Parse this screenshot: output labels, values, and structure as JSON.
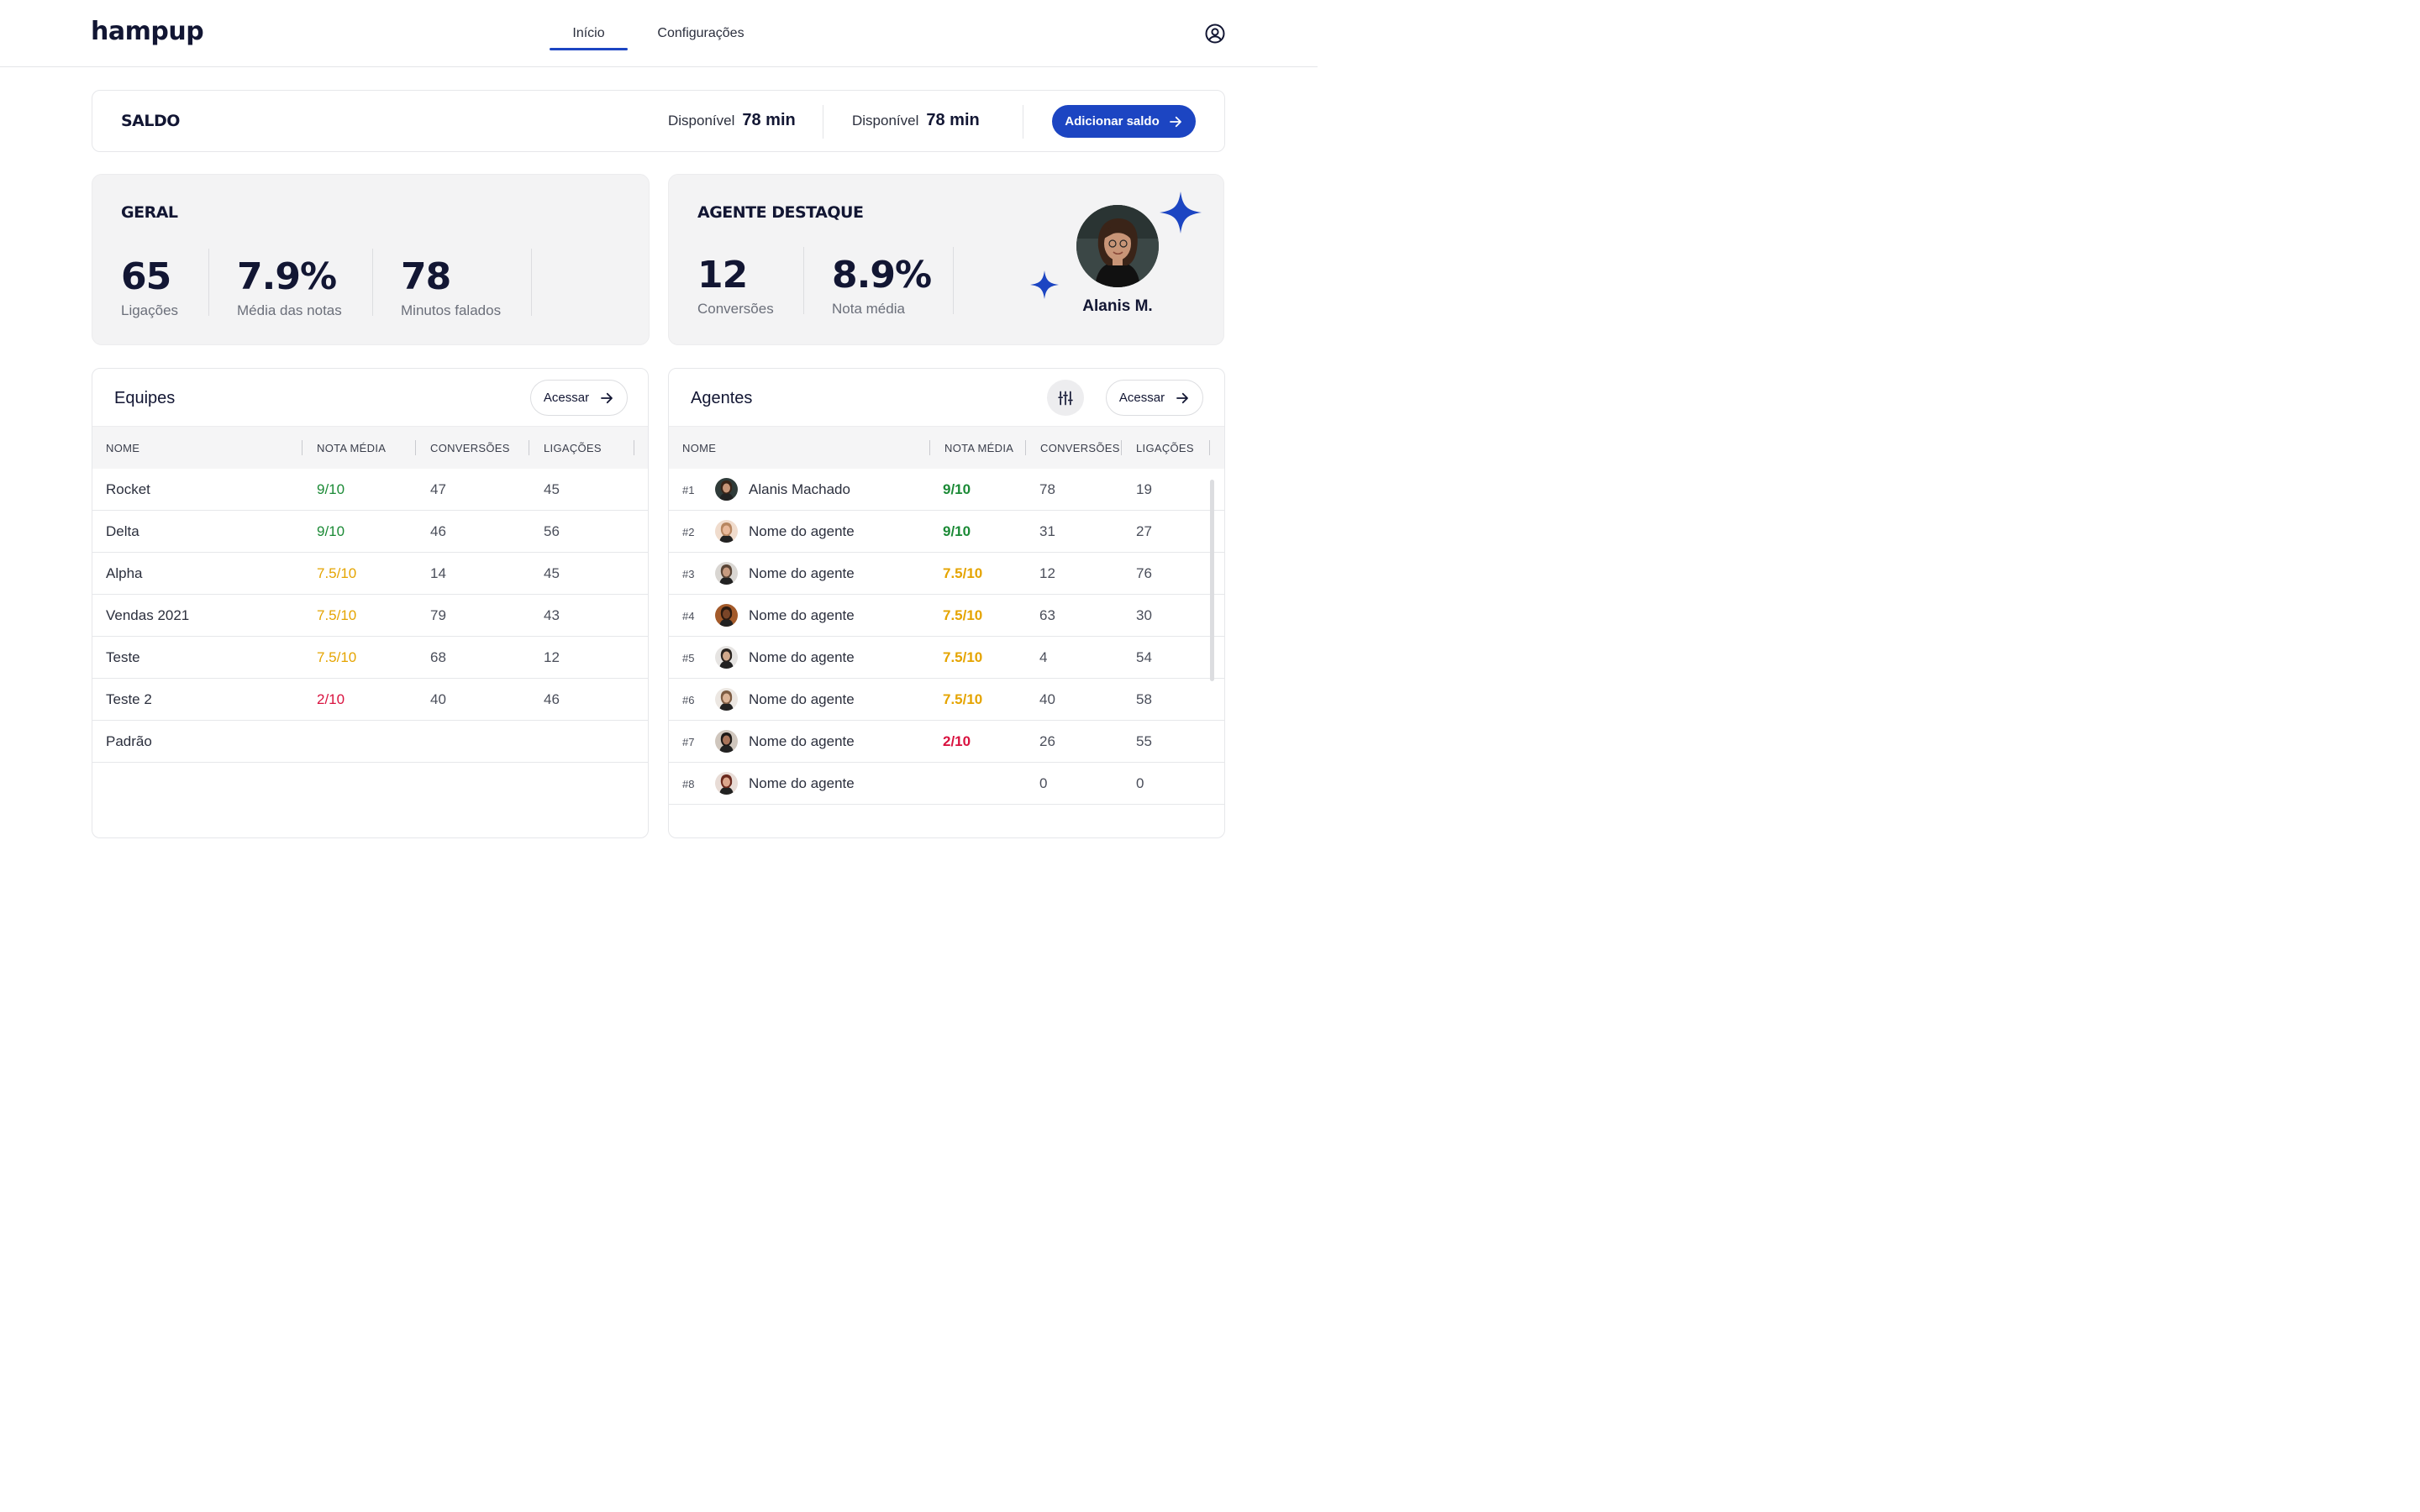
{
  "header": {
    "logo": "hampup",
    "tabs": [
      {
        "label": "Início",
        "active": true
      },
      {
        "label": "Configurações",
        "active": false
      }
    ],
    "user_icon": "user-circle-icon"
  },
  "saldo": {
    "title": "SALDO",
    "balances": [
      {
        "label": "Disponível",
        "value": "78 min"
      },
      {
        "label": "Disponível",
        "value": "78 min"
      }
    ],
    "add_button": "Adicionar saldo"
  },
  "geral": {
    "title": "GERAL",
    "stats": [
      {
        "value": "65",
        "label": "Ligações"
      },
      {
        "value": "7.9%",
        "label": "Média das notas"
      },
      {
        "value": "78",
        "label": "Minutos falados"
      }
    ]
  },
  "destaque": {
    "title": "AGENTE DESTAQUE",
    "stats": [
      {
        "value": "12",
        "label": "Conversões"
      },
      {
        "value": "8.9%",
        "label": "Nota média"
      }
    ],
    "agent_name": "Alanis M.",
    "accent": "#1c45c2"
  },
  "equipes": {
    "title": "Equipes",
    "access_button": "Acessar",
    "columns": [
      "NOME",
      "NOTA MÉDIA",
      "CONVERSÕES",
      "LIGAÇÕES"
    ],
    "rows": [
      {
        "name": "Rocket",
        "nota": "9/10",
        "level": "green",
        "conversoes": "47",
        "ligacoes": "45"
      },
      {
        "name": "Delta",
        "nota": "9/10",
        "level": "green",
        "conversoes": "46",
        "ligacoes": "56"
      },
      {
        "name": "Alpha",
        "nota": "7.5/10",
        "level": "orange",
        "conversoes": "14",
        "ligacoes": "45"
      },
      {
        "name": "Vendas 2021",
        "nota": "7.5/10",
        "level": "orange",
        "conversoes": "79",
        "ligacoes": "43"
      },
      {
        "name": "Teste",
        "nota": "7.5/10",
        "level": "orange",
        "conversoes": "68",
        "ligacoes": "12"
      },
      {
        "name": "Teste 2",
        "nota": "2/10",
        "level": "red",
        "conversoes": "40",
        "ligacoes": "46"
      },
      {
        "name": "Padrão",
        "nota": "",
        "level": "",
        "conversoes": "",
        "ligacoes": ""
      }
    ]
  },
  "agentes": {
    "title": "Agentes",
    "access_button": "Acessar",
    "filter_icon": "sliders-icon",
    "columns": [
      "NOME",
      "NOTA MÉDIA",
      "CONVERSÕES",
      "LIGAÇÕES"
    ],
    "rows": [
      {
        "rank": "#1",
        "name": "Alanis Machado",
        "nota": "9/10",
        "level": "green",
        "conversoes": "78",
        "ligacoes": "19"
      },
      {
        "rank": "#2",
        "name": "Nome do agente",
        "nota": "9/10",
        "level": "green",
        "conversoes": "31",
        "ligacoes": "27"
      },
      {
        "rank": "#3",
        "name": "Nome do agente",
        "nota": "7.5/10",
        "level": "orange",
        "conversoes": "12",
        "ligacoes": "76"
      },
      {
        "rank": "#4",
        "name": "Nome do agente",
        "nota": "7.5/10",
        "level": "orange",
        "conversoes": "63",
        "ligacoes": "30"
      },
      {
        "rank": "#5",
        "name": "Nome do agente",
        "nota": "7.5/10",
        "level": "orange",
        "conversoes": "4",
        "ligacoes": "54"
      },
      {
        "rank": "#6",
        "name": "Nome do agente",
        "nota": "7.5/10",
        "level": "orange",
        "conversoes": "40",
        "ligacoes": "58"
      },
      {
        "rank": "#7",
        "name": "Nome do agente",
        "nota": "2/10",
        "level": "red",
        "conversoes": "26",
        "ligacoes": "55"
      },
      {
        "rank": "#8",
        "name": "Nome do agente",
        "nota": "",
        "level": "",
        "conversoes": "0",
        "ligacoes": "0"
      }
    ]
  },
  "colors": {
    "primary": "#1c45c2",
    "good": "#1b8a36",
    "medium": "#e5a400",
    "bad": "#d9123f"
  }
}
